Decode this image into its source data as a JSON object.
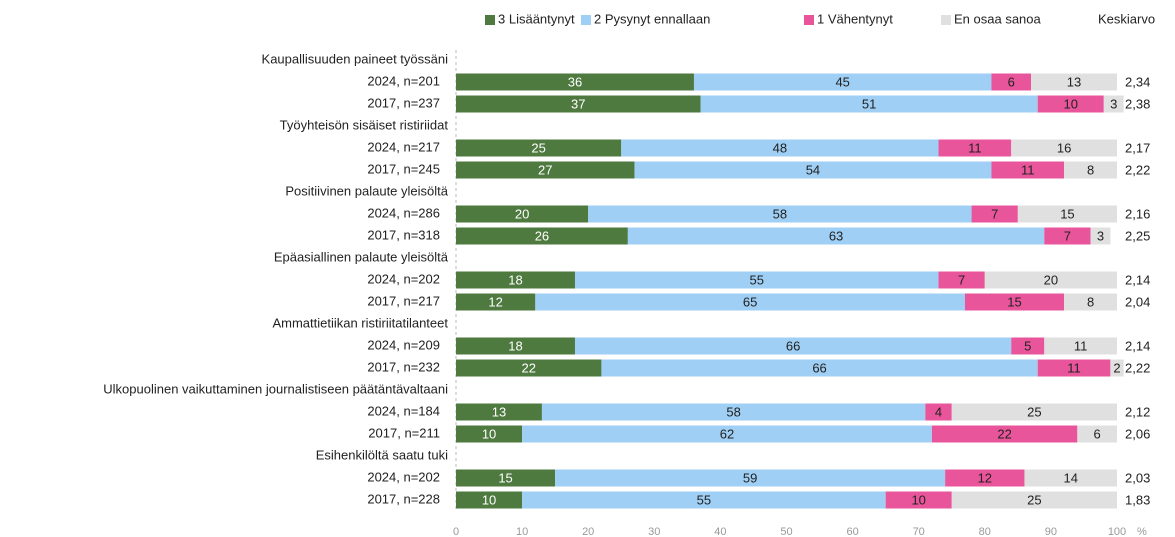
{
  "chart_data": {
    "type": "stacked-bar-horizontal",
    "categories": [
      "Kaupallisuuden paineet työssäni",
      "2024, n=201",
      "2017, n=237",
      "Työyhteisön sisäiset ristiriidat",
      "2024, n=217",
      "2017, n=245",
      "Positiivinen palaute yleisöltä",
      "2024, n=286",
      "2017, n=318",
      "Epäasiallinen palaute yleisöltä",
      "2024, n=202",
      "2017, n=217",
      "Ammattietiikan ristiriitatilanteet",
      "2024, n=209",
      "2017, n=232",
      "Ulkopuolinen vaikuttaminen journalistiseen päätäntävaltaani",
      "2024, n=184",
      "2017, n=211",
      "Esihenkilöltä saatu tuki",
      "2024, n=202",
      "2017, n=228"
    ],
    "series": [
      {
        "name": "3 Lisääntynyt",
        "color": "#4e7a3f",
        "values": [
          null,
          36,
          37,
          null,
          25,
          27,
          null,
          20,
          26,
          null,
          18,
          12,
          null,
          18,
          22,
          null,
          13,
          10,
          null,
          15,
          10
        ]
      },
      {
        "name": "2 Pysynyt ennallaan",
        "color": "#9fcff5",
        "values": [
          null,
          45,
          51,
          null,
          48,
          54,
          null,
          58,
          63,
          null,
          55,
          65,
          null,
          66,
          66,
          null,
          58,
          62,
          null,
          59,
          55
        ]
      },
      {
        "name": "1 Vähentynyt",
        "color": "#e8559b",
        "values": [
          null,
          6,
          10,
          null,
          11,
          11,
          null,
          7,
          7,
          null,
          7,
          15,
          null,
          5,
          11,
          null,
          4,
          22,
          null,
          12,
          10
        ]
      },
      {
        "name": "En osaa sanoa",
        "color": "#e0e0e0",
        "values": [
          null,
          13,
          3,
          null,
          16,
          8,
          null,
          15,
          3,
          null,
          20,
          8,
          null,
          11,
          2,
          null,
          25,
          6,
          null,
          14,
          25
        ]
      }
    ],
    "mean_title": "Keskiarvo",
    "means": [
      null,
      2.34,
      2.38,
      null,
      2.17,
      2.22,
      null,
      2.16,
      2.25,
      null,
      2.14,
      2.04,
      null,
      2.14,
      2.22,
      null,
      2.12,
      2.06,
      null,
      2.03,
      1.83
    ],
    "mean_labels": [
      null,
      "2,34",
      "2,38",
      null,
      "2,17",
      "2,22",
      null,
      "2,16",
      "2,25",
      null,
      "2,14",
      "2,04",
      null,
      "2,14",
      "2,22",
      null,
      "2,12",
      "2,06",
      null,
      "2,03",
      "1,83"
    ],
    "xlabel": "%",
    "xlim": [
      0,
      100
    ],
    "xticks": [
      0,
      10,
      20,
      30,
      40,
      50,
      60,
      70,
      80,
      90,
      100
    ]
  }
}
